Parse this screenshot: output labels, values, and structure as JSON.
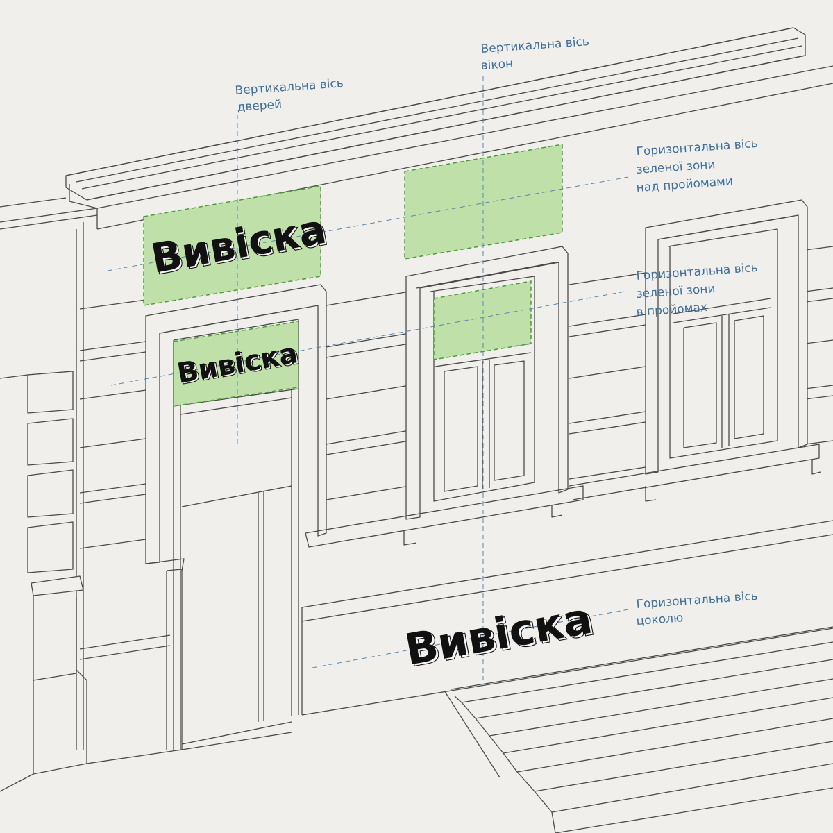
{
  "labels": {
    "door_axis": [
      "Вертикальна вісь",
      "дверей"
    ],
    "window_axis": [
      "Вертикальна вісь",
      "вікон"
    ],
    "green_above": [
      "Горизонтальна вісь",
      "зеленої зони",
      "над пройомами"
    ],
    "green_in": [
      "Горизонтальна вісь",
      "зеленої зони",
      "в пройомах"
    ],
    "plinth_axis": [
      "Горизонтальна вісь",
      "цоколю"
    ]
  },
  "sign_text": "Вивіска",
  "colors": {
    "background": "#f0efeb",
    "line": "#4a4a4a",
    "axis": "#5a86b0",
    "note": "#3f6f9a",
    "zone_fill": "#bfe0a8",
    "zone_stroke": "#4f9a3a"
  }
}
